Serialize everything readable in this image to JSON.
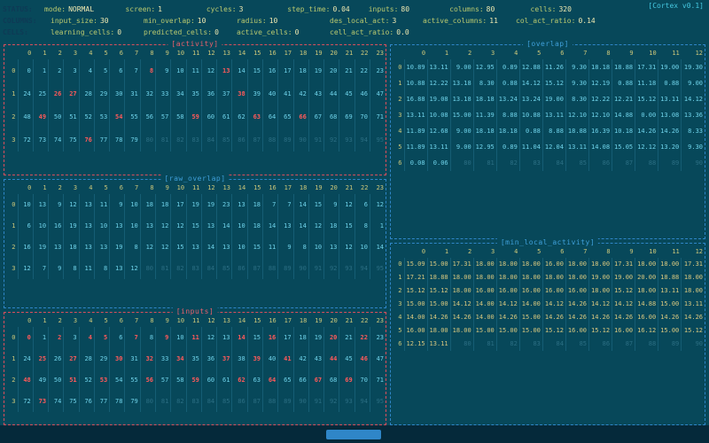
{
  "app_title": "[Cortex v0.1]",
  "colors": {
    "background": "#07485a",
    "accent_red": "#d94f5c",
    "accent_blue": "#2f86c8",
    "value_cyan": "#6fd3ea",
    "value_gold": "#d9c87f",
    "active_red": "#ff5a5a",
    "dim": "#2b6e83",
    "header_yellow": "#cdc87a"
  },
  "status_rows": [
    {
      "label": "STATUS:",
      "pairs": [
        [
          "mode:",
          "NORMAL"
        ],
        [
          "screen:",
          "1"
        ],
        [
          "cycles:",
          "3"
        ],
        [
          "step_time:",
          "0.04"
        ],
        [
          "inputs:",
          "80"
        ],
        [
          "columns:",
          "80"
        ],
        [
          "cells:",
          "320"
        ]
      ]
    },
    {
      "label": "COLUMNS:",
      "pairs": [
        [
          "input_size:",
          "30"
        ],
        [
          "min_overlap:",
          "10"
        ],
        [
          "radius:",
          "10"
        ],
        [
          "des_local_act:",
          "3"
        ],
        [
          "active_columns:",
          "11"
        ],
        [
          "col_act_ratio:",
          "0.14"
        ]
      ]
    },
    {
      "label": "CELLS:",
      "pairs": [
        [
          "learning_cells:",
          "0"
        ],
        [
          "predicted_cells:",
          "0"
        ],
        [
          "active_cells:",
          "0"
        ],
        [
          "cell_act_ratio:",
          "0.0"
        ]
      ]
    }
  ],
  "panels": {
    "activity": {
      "title": "[activity]",
      "col_headers": [
        "0",
        "1",
        "2",
        "3",
        "4",
        "5",
        "6",
        "7",
        "8",
        "9",
        "10",
        "11",
        "12",
        "13",
        "14",
        "15",
        "16",
        "17",
        "18",
        "19",
        "20",
        "21",
        "22",
        "23"
      ],
      "row_labels": [
        "0",
        "1",
        "2",
        "3"
      ],
      "values": [
        [
          "0",
          "1",
          "2",
          "3",
          "4",
          "5",
          "6",
          "7",
          "8",
          "9",
          "10",
          "11",
          "12",
          "13",
          "14",
          "15",
          "16",
          "17",
          "18",
          "19",
          "20",
          "21",
          "22",
          "23"
        ],
        [
          "24",
          "25",
          "26",
          "27",
          "28",
          "29",
          "30",
          "31",
          "32",
          "33",
          "34",
          "35",
          "36",
          "37",
          "38",
          "39",
          "40",
          "41",
          "42",
          "43",
          "44",
          "45",
          "46",
          "47"
        ],
        [
          "48",
          "49",
          "50",
          "51",
          "52",
          "53",
          "54",
          "55",
          "56",
          "57",
          "58",
          "59",
          "60",
          "61",
          "62",
          "63",
          "64",
          "65",
          "66",
          "67",
          "68",
          "69",
          "70",
          "71"
        ],
        [
          "72",
          "73",
          "74",
          "75",
          "76",
          "77",
          "78",
          "79",
          "80",
          "81",
          "82",
          "83",
          "84",
          "85",
          "86",
          "87",
          "88",
          "89",
          "90",
          "91",
          "92",
          "93",
          "94",
          "95"
        ]
      ],
      "red": [
        [
          8,
          13
        ],
        [
          2,
          3,
          14
        ],
        [
          1,
          6,
          11,
          15,
          18
        ],
        [
          4
        ]
      ],
      "dim": [
        [],
        [],
        [],
        [
          8,
          9,
          10,
          11,
          12,
          13,
          14,
          15,
          16,
          17,
          18,
          19,
          20,
          21,
          22,
          23
        ]
      ]
    },
    "raw_overlap": {
      "title": "[raw_overlap]",
      "col_headers": [
        "0",
        "1",
        "2",
        "3",
        "4",
        "5",
        "6",
        "7",
        "8",
        "9",
        "10",
        "11",
        "12",
        "13",
        "14",
        "15",
        "16",
        "17",
        "18",
        "19",
        "20",
        "21",
        "22",
        "23"
      ],
      "row_labels": [
        "0",
        "1",
        "2",
        "3"
      ],
      "values": [
        [
          "10",
          "13",
          "9",
          "12",
          "13",
          "11",
          "9",
          "10",
          "18",
          "18",
          "17",
          "19",
          "19",
          "23",
          "13",
          "18",
          "7",
          "7",
          "14",
          "15",
          "9",
          "12",
          "6",
          "12"
        ],
        [
          "6",
          "10",
          "16",
          "19",
          "13",
          "10",
          "13",
          "10",
          "13",
          "12",
          "12",
          "15",
          "13",
          "14",
          "10",
          "18",
          "14",
          "13",
          "14",
          "12",
          "18",
          "15",
          "8",
          "1"
        ],
        [
          "16",
          "19",
          "13",
          "18",
          "13",
          "13",
          "19",
          "8",
          "12",
          "12",
          "15",
          "13",
          "14",
          "13",
          "10",
          "15",
          "11",
          "9",
          "8",
          "10",
          "13",
          "12",
          "10",
          "14"
        ],
        [
          "12",
          "7",
          "9",
          "8",
          "11",
          "8",
          "13",
          "12",
          "80",
          "81",
          "82",
          "83",
          "84",
          "85",
          "86",
          "87",
          "88",
          "89",
          "90",
          "91",
          "92",
          "93",
          "94",
          "95"
        ]
      ],
      "red": [
        [],
        [],
        [],
        []
      ],
      "dim": [
        [],
        [],
        [],
        [
          8,
          9,
          10,
          11,
          12,
          13,
          14,
          15,
          16,
          17,
          18,
          19,
          20,
          21,
          22,
          23
        ]
      ]
    },
    "inputs": {
      "title": "[inputs]",
      "col_headers": [
        "0",
        "1",
        "2",
        "3",
        "4",
        "5",
        "6",
        "7",
        "8",
        "9",
        "10",
        "11",
        "12",
        "13",
        "14",
        "15",
        "16",
        "17",
        "18",
        "19",
        "20",
        "21",
        "22",
        "23"
      ],
      "row_labels": [
        "0",
        "1",
        "2",
        "3"
      ],
      "values": [
        [
          "0",
          "1",
          "2",
          "3",
          "4",
          "5",
          "6",
          "7",
          "8",
          "9",
          "10",
          "11",
          "12",
          "13",
          "14",
          "15",
          "16",
          "17",
          "18",
          "19",
          "20",
          "21",
          "22",
          "23"
        ],
        [
          "24",
          "25",
          "26",
          "27",
          "28",
          "29",
          "30",
          "31",
          "32",
          "33",
          "34",
          "35",
          "36",
          "37",
          "38",
          "39",
          "40",
          "41",
          "42",
          "43",
          "44",
          "45",
          "46",
          "47"
        ],
        [
          "48",
          "49",
          "50",
          "51",
          "52",
          "53",
          "54",
          "55",
          "56",
          "57",
          "58",
          "59",
          "60",
          "61",
          "62",
          "63",
          "64",
          "65",
          "66",
          "67",
          "68",
          "69",
          "70",
          "71"
        ],
        [
          "72",
          "73",
          "74",
          "75",
          "76",
          "77",
          "78",
          "79",
          "80",
          "81",
          "82",
          "83",
          "84",
          "85",
          "86",
          "87",
          "88",
          "89",
          "90",
          "91",
          "92",
          "93",
          "94",
          "95"
        ]
      ],
      "red": [
        [
          0,
          2,
          4,
          5,
          7,
          9,
          11,
          14,
          16,
          20,
          22
        ],
        [
          1,
          3,
          6,
          8,
          10,
          13,
          15,
          17,
          20,
          22
        ],
        [
          0,
          3,
          5,
          8,
          11,
          14,
          16,
          19,
          21
        ],
        [
          1
        ]
      ],
      "dim": [
        [],
        [],
        [],
        [
          8,
          9,
          10,
          11,
          12,
          13,
          14,
          15,
          16,
          17,
          18,
          19,
          20,
          21,
          22,
          23
        ]
      ]
    },
    "overlap": {
      "title": "[overlap]",
      "col_headers": [
        "0",
        "1",
        "2",
        "3",
        "4",
        "5",
        "6",
        "7",
        "8",
        "9",
        "10",
        "11",
        "12"
      ],
      "row_labels": [
        "0",
        "1",
        "2",
        "3",
        "4",
        "5",
        "6"
      ],
      "values": [
        [
          "10.89",
          "13.11",
          "9.00",
          "12.95",
          "0.89",
          "12.88",
          "11.26",
          "9.30",
          "18.18",
          "18.88",
          "17.31",
          "19.00",
          "19.30"
        ],
        [
          "10.88",
          "12.22",
          "13.18",
          "8.30",
          "0.88",
          "14.12",
          "15.12",
          "9.30",
          "12.19",
          "0.88",
          "11.18",
          "0.88",
          "9.00"
        ],
        [
          "16.88",
          "19.08",
          "13.18",
          "18.18",
          "13.24",
          "13.24",
          "19.00",
          "8.30",
          "12.22",
          "12.21",
          "15.12",
          "13.11",
          "14.12"
        ],
        [
          "13.11",
          "10.08",
          "15.00",
          "11.39",
          "8.88",
          "10.88",
          "13.11",
          "12.10",
          "12.10",
          "14.88",
          "0.00",
          "13.08",
          "13.36"
        ],
        [
          "11.89",
          "12.68",
          "9.00",
          "18.18",
          "18.18",
          "0.88",
          "8.88",
          "18.88",
          "16.39",
          "10.18",
          "14.26",
          "14.26",
          "8.33"
        ],
        [
          "11.89",
          "13.11",
          "9.00",
          "12.95",
          "0.89",
          "11.04",
          "12.04",
          "13.11",
          "14.08",
          "15.05",
          "12.12",
          "13.20",
          "9.30"
        ],
        [
          "0.08",
          "0.06",
          "80",
          "81",
          "82",
          "83",
          "84",
          "85",
          "86",
          "87",
          "88",
          "89",
          "90"
        ]
      ],
      "red": [
        [],
        [],
        [],
        [],
        [],
        [],
        []
      ],
      "dim": [
        [],
        [],
        [],
        [],
        [],
        [],
        [
          2,
          3,
          4,
          5,
          6,
          7,
          8,
          9,
          10,
          11,
          12
        ]
      ]
    },
    "min_local_activity": {
      "title": "[min_local_activity]",
      "col_headers": [
        "0",
        "1",
        "2",
        "3",
        "4",
        "5",
        "6",
        "7",
        "8",
        "9",
        "10",
        "11",
        "12"
      ],
      "row_labels": [
        "0",
        "1",
        "2",
        "3",
        "4",
        "5",
        "6"
      ],
      "values": [
        [
          "15.09",
          "15.00",
          "17.31",
          "18.00",
          "18.00",
          "18.00",
          "16.00",
          "18.00",
          "18.00",
          "17.31",
          "18.00",
          "18.00",
          "17.31"
        ],
        [
          "17.21",
          "18.88",
          "18.00",
          "18.00",
          "18.00",
          "18.00",
          "18.00",
          "18.00",
          "19.00",
          "19.00",
          "20.00",
          "18.88",
          "18.00"
        ],
        [
          "15.12",
          "15.12",
          "18.00",
          "16.00",
          "16.00",
          "16.00",
          "16.00",
          "16.00",
          "18.00",
          "15.12",
          "18.00",
          "13.11",
          "18.00"
        ],
        [
          "15.00",
          "15.00",
          "14.12",
          "14.00",
          "14.12",
          "14.00",
          "14.12",
          "14.26",
          "14.12",
          "14.12",
          "14.88",
          "15.00",
          "13.11"
        ],
        [
          "14.00",
          "14.26",
          "14.26",
          "14.00",
          "14.26",
          "15.00",
          "14.26",
          "14.26",
          "14.26",
          "14.26",
          "16.00",
          "14.26",
          "14.26"
        ],
        [
          "16.00",
          "18.00",
          "18.00",
          "15.00",
          "15.00",
          "15.00",
          "15.12",
          "16.00",
          "15.12",
          "16.00",
          "16.12",
          "15.00",
          "15.12"
        ],
        [
          "12.15",
          "13.11",
          "80",
          "81",
          "82",
          "83",
          "84",
          "85",
          "86",
          "87",
          "88",
          "89",
          "90"
        ]
      ],
      "red": [
        [],
        [],
        [],
        [],
        [],
        [],
        []
      ],
      "dim": [
        [],
        [],
        [],
        [],
        [],
        [],
        [
          2,
          3,
          4,
          5,
          6,
          7,
          8,
          9,
          10,
          11,
          12
        ]
      ]
    }
  }
}
